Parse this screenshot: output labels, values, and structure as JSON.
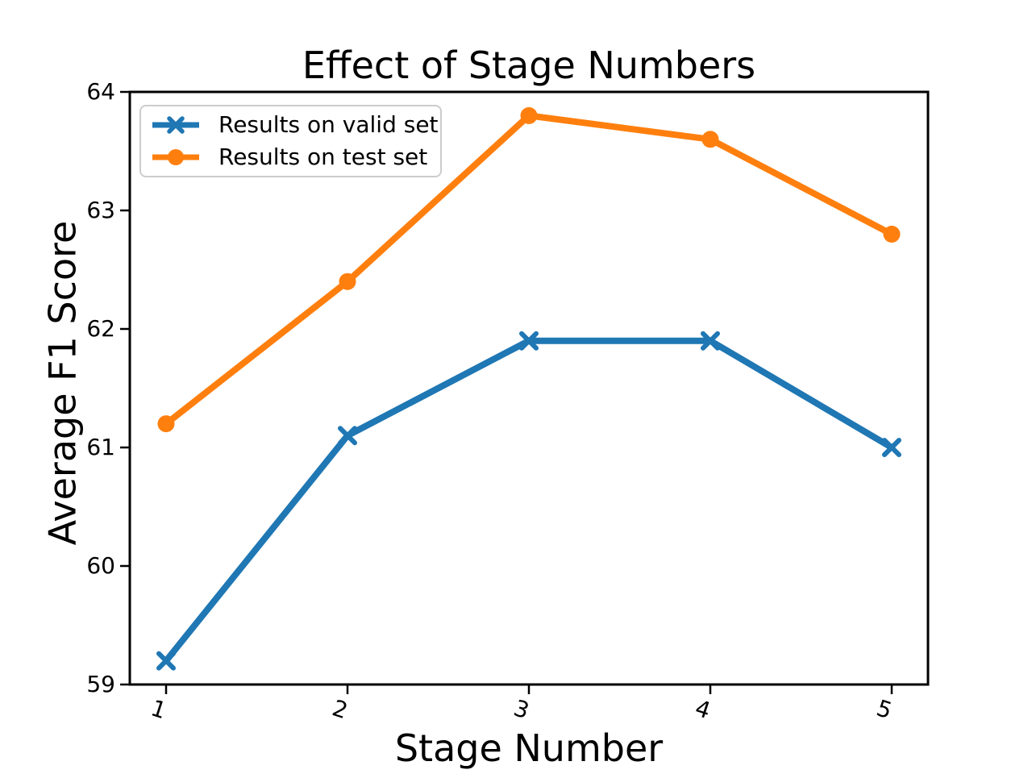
{
  "title": "Effect of Stage Numbers",
  "xlabel": "Stage Number",
  "ylabel": "Average F1 Score",
  "legend": {
    "position": "upper left",
    "items": [
      {
        "label": "Results on valid set",
        "color": "#1f77b4",
        "marker": "x"
      },
      {
        "label": "Results on test set",
        "color": "#ff7f0e",
        "marker": "o"
      }
    ]
  },
  "chart_data": {
    "type": "line",
    "title": "Effect of Stage Numbers",
    "xlabel": "Stage Number",
    "ylabel": "Average F1 Score",
    "x": [
      1,
      2,
      3,
      4,
      5
    ],
    "series": [
      {
        "name": "Results on valid set",
        "values": [
          59.2,
          61.1,
          61.9,
          61.9,
          61.0
        ],
        "color": "#1f77b4",
        "marker": "x"
      },
      {
        "name": "Results on test set",
        "values": [
          61.2,
          62.4,
          63.8,
          63.6,
          62.8
        ],
        "color": "#ff7f0e",
        "marker": "o"
      }
    ],
    "xticks": [
      1,
      2,
      3,
      4,
      5
    ],
    "yticks": [
      59,
      60,
      61,
      62,
      63,
      64
    ],
    "xlim": [
      0.8,
      5.2
    ],
    "ylim": [
      59,
      64
    ],
    "xtick_rotation_deg": 18,
    "grid": false,
    "legend_position": "upper left",
    "spine_color": "#000000",
    "background": "#ffffff"
  }
}
